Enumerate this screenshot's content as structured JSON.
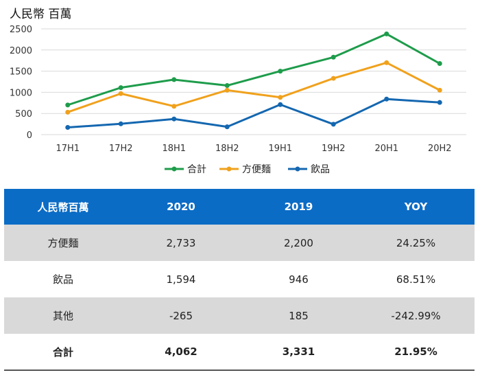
{
  "chart_data": {
    "type": "line",
    "unit_label": "人民幣 百萬",
    "categories": [
      "17H1",
      "17H2",
      "18H1",
      "18H2",
      "19H1",
      "19H2",
      "20H1",
      "20H2"
    ],
    "ylim": [
      0,
      2500
    ],
    "yticks": [
      0,
      500,
      1000,
      1500,
      2000,
      2500
    ],
    "grid": true,
    "legend_position": "bottom",
    "series": [
      {
        "name": "合計",
        "color": "#1e9c4b",
        "values": [
          700,
          1110,
          1300,
          1160,
          1500,
          1830,
          2380,
          1680
        ]
      },
      {
        "name": "方便麵",
        "color": "#f0a11c",
        "values": [
          530,
          970,
          670,
          1050,
          880,
          1330,
          1700,
          1050
        ]
      },
      {
        "name": "飲品",
        "color": "#1467b0",
        "values": [
          170,
          255,
          370,
          185,
          710,
          245,
          840,
          760
        ]
      }
    ]
  },
  "table": {
    "headers": [
      "人民幣百萬",
      "2020",
      "2019",
      "YOY"
    ],
    "rows": [
      {
        "label": "方便麵",
        "v2020": "2,733",
        "v2019": "2,200",
        "yoy": "24.25%"
      },
      {
        "label": "飲品",
        "v2020": "1,594",
        "v2019": "946",
        "yoy": "68.51%"
      },
      {
        "label": "其他",
        "v2020": "-265",
        "v2019": "185",
        "yoy": "-242.99%"
      },
      {
        "label": "合計",
        "v2020": "4,062",
        "v2019": "3,331",
        "yoy": "21.95%"
      }
    ]
  }
}
